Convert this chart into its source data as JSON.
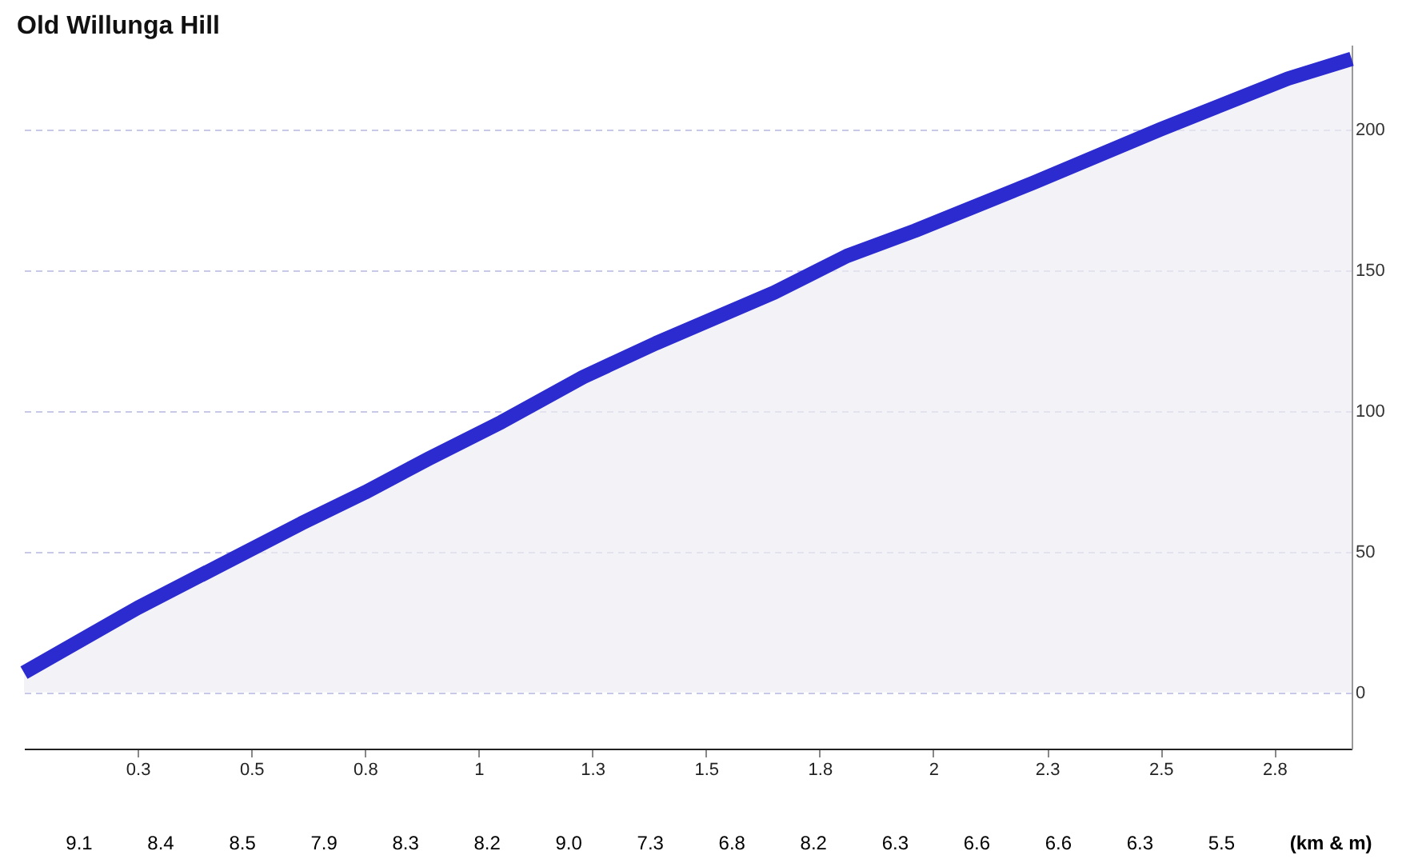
{
  "chart_data": {
    "type": "area",
    "title": "Old Willunga Hill",
    "x": [
      0,
      0.25,
      0.43,
      0.61,
      0.75,
      0.89,
      1.05,
      1.23,
      1.39,
      1.65,
      1.81,
      1.96,
      2.22,
      2.5,
      2.78,
      2.92
    ],
    "series": [
      {
        "color": "#2b2bd0",
        "values": [
          7,
          30,
          45,
          60,
          71,
          83,
          96,
          112,
          124,
          142,
          155,
          164,
          181,
          200,
          218,
          225
        ]
      }
    ],
    "xlim": [
      0,
      2.92
    ],
    "xticks": [
      {
        "value": 0.25,
        "label": "0.3"
      },
      {
        "value": 0.5,
        "label": "0.5"
      },
      {
        "value": 0.75,
        "label": "0.8"
      },
      {
        "value": 1,
        "label": "1"
      },
      {
        "value": 1.25,
        "label": "1.3"
      },
      {
        "value": 1.5,
        "label": "1.5"
      },
      {
        "value": 1.75,
        "label": "1.8"
      },
      {
        "value": 2,
        "label": "2"
      },
      {
        "value": 2.25,
        "label": "2.3"
      },
      {
        "value": 2.5,
        "label": "2.5"
      },
      {
        "value": 2.75,
        "label": "2.8"
      }
    ],
    "ylim": [
      -20,
      230
    ],
    "yticks": [
      0,
      50,
      100,
      150,
      200
    ],
    "grid": "y",
    "marker": "none",
    "annotations": [
      "9.1",
      "8.4",
      "8.5",
      "7.9",
      "8.3",
      "8.2",
      "9.0",
      "7.3",
      "6.8",
      "8.2",
      "6.3",
      "6.6",
      "6.6",
      "6.3",
      "5.5",
      "(km & m)"
    ]
  }
}
